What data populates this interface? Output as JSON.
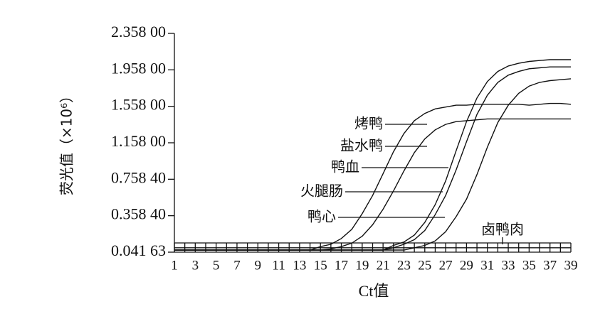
{
  "chart_data": {
    "type": "line",
    "y_label": "荧光值（×10⁶）",
    "x_label": "Ct值",
    "x": [
      1,
      2,
      3,
      4,
      5,
      6,
      7,
      8,
      9,
      10,
      11,
      12,
      13,
      14,
      15,
      16,
      17,
      18,
      19,
      20,
      21,
      22,
      23,
      24,
      25,
      26,
      27,
      28,
      29,
      30,
      31,
      32,
      33,
      34,
      35,
      36,
      37,
      38,
      39
    ],
    "xlim": [
      1,
      39
    ],
    "xticks": [
      1,
      3,
      5,
      7,
      9,
      11,
      13,
      15,
      17,
      19,
      21,
      23,
      25,
      27,
      29,
      31,
      33,
      35,
      37,
      39
    ],
    "ylim": [
      0.04163,
      2.358
    ],
    "yticks": [
      {
        "value": 0.04163,
        "label": "0.041 63"
      },
      {
        "value": 0.3584,
        "label": "0.358 40"
      },
      {
        "value": 0.7584,
        "label": "0.758 40"
      },
      {
        "value": 1.158,
        "label": "1.158 00"
      },
      {
        "value": 1.558,
        "label": "1.558 00"
      },
      {
        "value": 1.958,
        "label": "1.958 00"
      },
      {
        "value": 2.358,
        "label": "2.358 00"
      }
    ],
    "series": [
      {
        "name": "烤鸭",
        "color": "#111111",
        "values": [
          0.06,
          0.06,
          0.06,
          0.06,
          0.06,
          0.06,
          0.06,
          0.06,
          0.06,
          0.06,
          0.06,
          0.06,
          0.06,
          0.06,
          0.09,
          0.11,
          0.16,
          0.24,
          0.38,
          0.58,
          0.82,
          1.06,
          1.26,
          1.4,
          1.48,
          1.53,
          1.55,
          1.57,
          1.57,
          1.58,
          1.58,
          1.58,
          1.58,
          1.58,
          1.57,
          1.58,
          1.59,
          1.59,
          1.58
        ]
      },
      {
        "name": "盐水鸭",
        "color": "#111111",
        "values": [
          0.06,
          0.06,
          0.06,
          0.06,
          0.06,
          0.06,
          0.06,
          0.06,
          0.06,
          0.06,
          0.06,
          0.06,
          0.06,
          0.06,
          0.06,
          0.07,
          0.09,
          0.12,
          0.18,
          0.28,
          0.43,
          0.63,
          0.85,
          1.05,
          1.2,
          1.3,
          1.36,
          1.39,
          1.4,
          1.41,
          1.42,
          1.42,
          1.42,
          1.42,
          1.42,
          1.42,
          1.42,
          1.42,
          1.42
        ]
      },
      {
        "name": "鸭血",
        "color": "#111111",
        "values": [
          0.06,
          0.06,
          0.06,
          0.06,
          0.06,
          0.06,
          0.06,
          0.06,
          0.06,
          0.06,
          0.06,
          0.06,
          0.06,
          0.06,
          0.06,
          0.06,
          0.06,
          0.06,
          0.06,
          0.06,
          0.06,
          0.1,
          0.13,
          0.19,
          0.3,
          0.48,
          0.74,
          1.07,
          1.39,
          1.65,
          1.83,
          1.94,
          2.0,
          2.03,
          2.05,
          2.06,
          2.07,
          2.07,
          2.07
        ]
      },
      {
        "name": "火腿肠",
        "color": "#111111",
        "values": [
          0.06,
          0.06,
          0.06,
          0.06,
          0.06,
          0.06,
          0.06,
          0.06,
          0.06,
          0.06,
          0.06,
          0.06,
          0.06,
          0.06,
          0.06,
          0.06,
          0.06,
          0.06,
          0.06,
          0.06,
          0.06,
          0.08,
          0.11,
          0.15,
          0.23,
          0.37,
          0.58,
          0.86,
          1.17,
          1.47,
          1.68,
          1.82,
          1.9,
          1.94,
          1.97,
          1.98,
          1.99,
          1.99,
          1.99
        ]
      },
      {
        "name": "鸭心",
        "color": "#111111",
        "values": [
          0.06,
          0.06,
          0.06,
          0.06,
          0.06,
          0.06,
          0.06,
          0.06,
          0.06,
          0.06,
          0.06,
          0.06,
          0.06,
          0.06,
          0.06,
          0.06,
          0.06,
          0.06,
          0.06,
          0.06,
          0.06,
          0.06,
          0.06,
          0.08,
          0.1,
          0.14,
          0.22,
          0.35,
          0.54,
          0.81,
          1.11,
          1.38,
          1.57,
          1.7,
          1.78,
          1.82,
          1.84,
          1.85,
          1.86
        ]
      },
      {
        "name": "卤鸭肉",
        "color": "#111111",
        "values": [
          0.08,
          0.08,
          0.08,
          0.08,
          0.08,
          0.08,
          0.08,
          0.08,
          0.08,
          0.08,
          0.08,
          0.08,
          0.08,
          0.08,
          0.08,
          0.08,
          0.08,
          0.08,
          0.08,
          0.08,
          0.08,
          0.08,
          0.08,
          0.08,
          0.08,
          0.08,
          0.08,
          0.08,
          0.08,
          0.08,
          0.08,
          0.08,
          0.08,
          0.08,
          0.08,
          0.08,
          0.08,
          0.08,
          0.08
        ]
      }
    ]
  }
}
